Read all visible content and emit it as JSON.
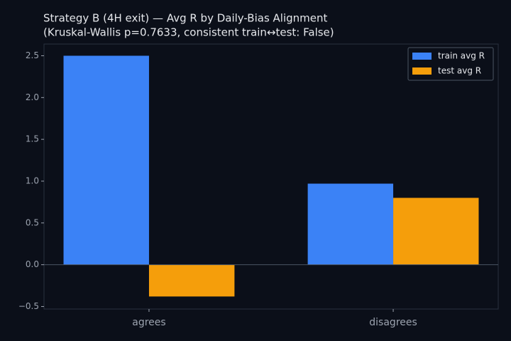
{
  "chart_data": {
    "type": "bar",
    "title": "Strategy B (4H exit) — Avg R by Daily-Bias Alignment",
    "subtitle": "(Kruskal-Wallis p=0.7633, consistent train↔test: False)",
    "categories": [
      "agrees",
      "disagrees"
    ],
    "series": [
      {
        "name": "train avg R",
        "color": "#3b82f6",
        "values": [
          2.5,
          0.97
        ]
      },
      {
        "name": "test avg R",
        "color": "#f59e0b",
        "values": [
          -0.38,
          0.8
        ]
      }
    ],
    "ylim": [
      -0.53,
      2.64
    ],
    "yticks": [
      {
        "value": -0.5,
        "label": "−0.5"
      },
      {
        "value": 0,
        "label": "0.0"
      },
      0.5,
      {
        "value": 1,
        "label": "1.0"
      },
      1.5,
      {
        "value": 2,
        "label": "2.0"
      },
      2.5
    ],
    "legend": "upper right"
  }
}
